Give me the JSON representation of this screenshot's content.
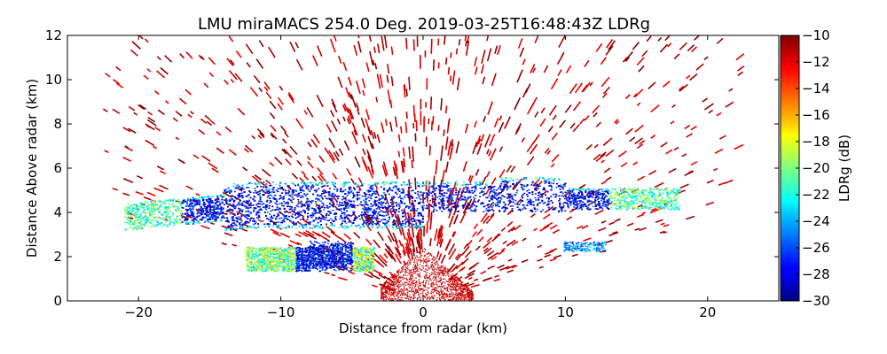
{
  "chart_data": {
    "type": "heatmap",
    "title": "LMU miraMACS 254.0 Deg. 2019-03-25T16:48:43Z  LDRg",
    "xlabel": "Distance from radar (km)",
    "ylabel": "Distance Above radar  (km)",
    "colorbar_label": "LDRg (dB)",
    "xlim": [
      -25,
      25
    ],
    "ylim": [
      0,
      12
    ],
    "clim": [
      -30,
      -10
    ],
    "x_ticks": [
      -20,
      -10,
      0,
      10,
      20
    ],
    "x_tick_labels": [
      "−20",
      "−10",
      "0",
      "10",
      "20"
    ],
    "y_ticks": [
      0,
      2,
      4,
      6,
      8,
      10,
      12
    ],
    "y_tick_labels": [
      "0",
      "2",
      "4",
      "6",
      "8",
      "10",
      "12"
    ],
    "colorbar_ticks": [
      -30,
      -28,
      -26,
      -24,
      -22,
      -20,
      -18,
      -16,
      -14,
      -12,
      -10
    ],
    "colorbar_tick_labels": [
      "−30",
      "−28",
      "−26",
      "−24",
      "−22",
      "−20",
      "−18",
      "−16",
      "−14",
      "−12",
      "−10"
    ],
    "colormap": "jet",
    "grid": false,
    "features": [
      {
        "name": "main cloud layer",
        "x_range": [
          -21,
          18
        ],
        "height_range_km": [
          3.3,
          5.3
        ],
        "ldr_core_db": -29,
        "ldr_edge_db": -20
      },
      {
        "name": "lower layer",
        "x_range": [
          -12,
          -4
        ],
        "height_range_km": [
          1.2,
          2.4
        ],
        "ldr_core_db": -28,
        "ldr_edge_db": -18
      },
      {
        "name": "small patch",
        "x_range": [
          9.5,
          13
        ],
        "height_range_km": [
          2.2,
          2.7
        ],
        "ldr_core_db": -24
      },
      {
        "name": "near-radar clutter",
        "x_range": [
          -3,
          4
        ],
        "height_range_km": [
          0,
          2.5
        ],
        "ldr_db": -11
      },
      {
        "name": "scattered noise",
        "x_range": [
          -22,
          22
        ],
        "height_range_km": [
          0,
          12
        ],
        "ldr_db": -10.5
      }
    ]
  }
}
